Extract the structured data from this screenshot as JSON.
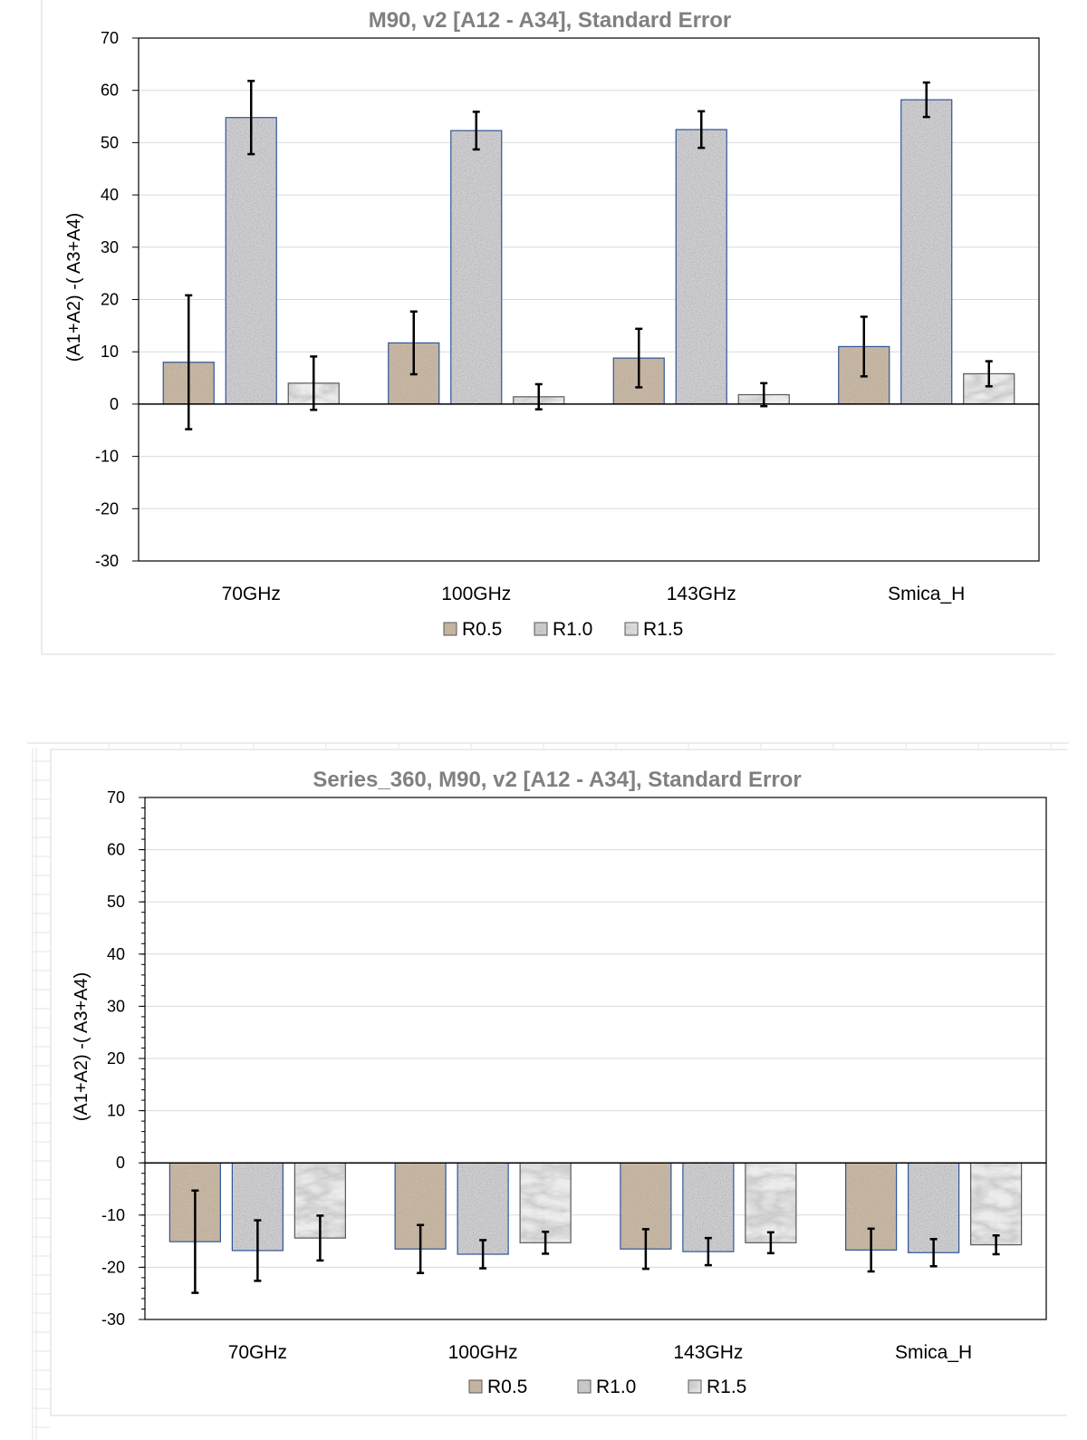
{
  "colors": {
    "R0.5": "#a89a8a",
    "R1.0": "#a6a6a8",
    "R1.5": "#e6e6e6",
    "gridline": "#d9d9d9",
    "title": "#808080",
    "border": "#2f5597"
  },
  "chart_data": [
    {
      "type": "bar",
      "title": "M90, v2  [A12 - A34],  Standard Error",
      "ylabel": "(A1+A2) -( A3+A4)",
      "xlabel": "",
      "ylim": [
        -30,
        70
      ],
      "yticks": [
        70,
        60,
        50,
        40,
        30,
        20,
        10,
        0,
        -10,
        -20,
        -30
      ],
      "categories": [
        "70GHz",
        "100GHz",
        "143GHz",
        "Smica_H"
      ],
      "legend_position": "bottom",
      "grid": true,
      "series": [
        {
          "name": "R0.5",
          "values": [
            8.0,
            11.7,
            8.8,
            11.0
          ],
          "errors": [
            12.8,
            6.0,
            5.6,
            5.7
          ]
        },
        {
          "name": "R1.0",
          "values": [
            54.8,
            52.3,
            52.5,
            58.2
          ],
          "errors": [
            7.0,
            3.6,
            3.5,
            3.3
          ]
        },
        {
          "name": "R1.5",
          "values": [
            4.0,
            1.4,
            1.8,
            5.8
          ],
          "errors": [
            5.1,
            2.4,
            2.2,
            2.4
          ]
        }
      ]
    },
    {
      "type": "bar",
      "title": "Series_360, M90, v2  [A12 - A34],  Standard Error",
      "ylabel": "(A1+A2) -( A3+A4)",
      "xlabel": "",
      "ylim": [
        -30,
        70
      ],
      "yticks": [
        70,
        60,
        50,
        40,
        30,
        20,
        10,
        0,
        -10,
        -20,
        -30
      ],
      "categories": [
        "70GHz",
        "100GHz",
        "143GHz",
        "Smica_H"
      ],
      "legend_position": "bottom",
      "grid": true,
      "series": [
        {
          "name": "R0.5",
          "values": [
            -15.1,
            -16.5,
            -16.5,
            -16.7
          ],
          "errors": [
            9.8,
            4.6,
            3.8,
            4.1
          ]
        },
        {
          "name": "R1.0",
          "values": [
            -16.8,
            -17.5,
            -17.0,
            -17.2
          ],
          "errors": [
            5.8,
            2.7,
            2.6,
            2.6
          ]
        },
        {
          "name": "R1.5",
          "values": [
            -14.4,
            -15.3,
            -15.3,
            -15.7
          ],
          "errors": [
            4.3,
            2.1,
            2.0,
            1.8
          ]
        }
      ]
    }
  ]
}
